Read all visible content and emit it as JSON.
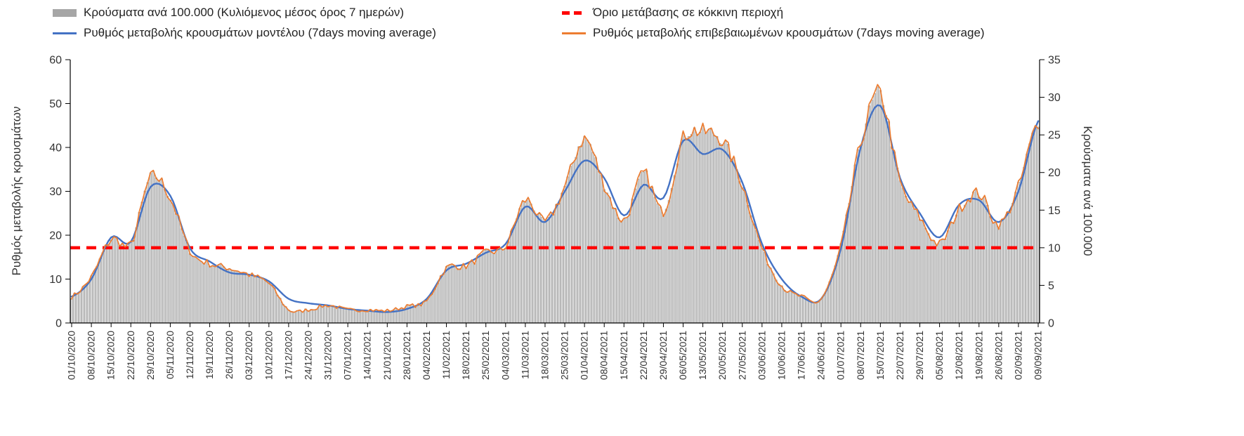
{
  "legend": {
    "items": [
      {
        "label": "Κρούσματα ανά 100.000 (Κυλιόμενος μέσος όρος 7 ημερών)",
        "swatch": "bar",
        "color": "#a6a6a6"
      },
      {
        "label": "Όριο μετάβασης σε κόκκινη περιοχή",
        "swatch": "dashed-line",
        "color": "#ff0000"
      },
      {
        "label": "Ρυθμός μεταβολής κρουσμάτων μοντέλου (7days moving average)",
        "swatch": "line",
        "color": "#4472c4"
      },
      {
        "label": "Ρυθμός μεταβολής επιβεβαιωμένων κρουσμάτων (7days moving average)",
        "swatch": "line",
        "color": "#ed7d31"
      }
    ]
  },
  "chart_data": {
    "type": "bar+line",
    "sampling": "weekly estimates read from the chart; rendered series are daily",
    "x_labels": [
      "01/10/2020",
      "08/10/2020",
      "15/10/2020",
      "22/10/2020",
      "29/10/2020",
      "05/11/2020",
      "12/11/2020",
      "19/11/2020",
      "26/11/2020",
      "03/12/2020",
      "10/12/2020",
      "17/12/2020",
      "24/12/2020",
      "31/12/2020",
      "07/01/2021",
      "14/01/2021",
      "21/01/2021",
      "28/01/2021",
      "04/02/2021",
      "11/02/2021",
      "18/02/2021",
      "25/02/2021",
      "04/03/2021",
      "11/03/2021",
      "18/03/2021",
      "25/03/2021",
      "01/04/2021",
      "08/04/2021",
      "15/04/2021",
      "22/04/2021",
      "29/04/2021",
      "06/05/2021",
      "13/05/2021",
      "20/05/2021",
      "27/05/2021",
      "03/06/2021",
      "10/06/2021",
      "17/06/2021",
      "24/06/2021",
      "01/07/2021",
      "08/07/2021",
      "15/07/2021",
      "22/07/2021",
      "29/07/2021",
      "05/08/2021",
      "12/08/2021",
      "19/08/2021",
      "26/08/2021",
      "02/09/2021",
      "09/09/2021"
    ],
    "left_axis": {
      "label": "Ρυθμός μεταβολής κρουσμάτων",
      "min": 0,
      "max": 60,
      "ticks": [
        0,
        10,
        20,
        30,
        40,
        50,
        60
      ]
    },
    "right_axis": {
      "label": "Κρούσματα ανά 100.000",
      "min": 0,
      "max": 35,
      "ticks": [
        0,
        5,
        10,
        15,
        20,
        25,
        30,
        35
      ]
    },
    "threshold": {
      "name": "Όριο μετάβασης σε κόκκινη περιοχή",
      "axis": "right",
      "value": 10,
      "color": "#ff0000",
      "style": "dashed"
    },
    "grid": "off",
    "legend_position": "top",
    "series": [
      {
        "key": "cases",
        "name": "Κρούσματα ανά 100.000 (Κυλιόμενος μέσος όρος 7 ημερών)",
        "type": "bar",
        "axis": "right",
        "fill": "#d9d9d9",
        "stroke": "#8c8c8c",
        "values": [
          3.5,
          6.1,
          11.1,
          10.5,
          19.3,
          16.6,
          9.6,
          7.9,
          7.3,
          6.4,
          5.3,
          1.8,
          1.8,
          2.3,
          1.8,
          1.8,
          1.6,
          2.2,
          2.9,
          7.3,
          7.6,
          9.3,
          10.2,
          16.3,
          13.4,
          18.1,
          24.5,
          18.4,
          13.7,
          19.8,
          14.9,
          24.5,
          25.4,
          24.2,
          18.4,
          9.9,
          5.0,
          3.5,
          3.2,
          10.2,
          23.9,
          30.3,
          18.7,
          14.0,
          10.5,
          15.2,
          17.2,
          13.1,
          18.1,
          26.8
        ]
      },
      {
        "key": "model",
        "name": "Ρυθμός μεταβολής κρουσμάτων μοντέλου (7days moving average)",
        "type": "line",
        "axis": "left",
        "color": "#4472c4",
        "values": [
          6,
          10,
          19.5,
          18.5,
          31,
          29,
          17,
          14,
          11.5,
          11,
          9.5,
          5.5,
          4.5,
          4,
          3.2,
          2.8,
          2.5,
          3.2,
          5.5,
          12,
          13.5,
          16,
          18,
          26.5,
          23,
          30,
          37,
          33,
          24.5,
          31.5,
          28.5,
          41.5,
          38.5,
          39.5,
          32,
          18,
          10,
          6,
          5.5,
          17,
          40,
          49.5,
          33,
          25,
          19.5,
          27,
          28,
          23,
          30,
          46
        ]
      },
      {
        "key": "confirmed",
        "name": "Ρυθμός μεταβολής επιβεβαιωμένων κρουσμάτων (7days moving average)",
        "type": "line",
        "axis": "left",
        "color": "#ed7d31",
        "values": [
          6,
          10.5,
          19,
          18,
          33,
          28.5,
          16.5,
          13.5,
          12.5,
          11,
          9,
          3,
          3,
          4,
          3,
          3,
          2.8,
          3.8,
          5,
          12.5,
          13,
          16,
          17.5,
          28,
          23,
          31,
          42,
          31.5,
          23.5,
          34,
          25.5,
          42,
          43.5,
          41.5,
          31.5,
          17,
          8.5,
          6,
          5.5,
          17.5,
          41,
          52,
          32,
          24,
          18,
          26,
          29.5,
          22.5,
          31,
          46
        ]
      }
    ]
  }
}
